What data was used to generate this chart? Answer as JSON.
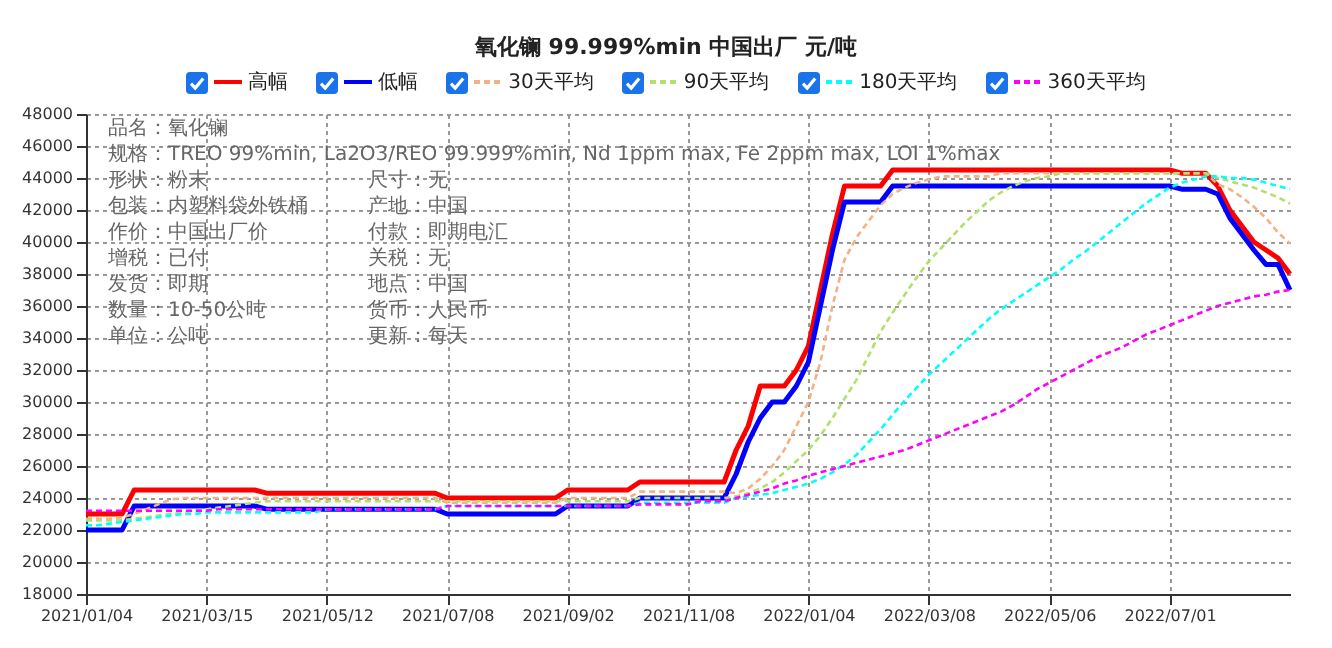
{
  "chart_data": {
    "type": "line",
    "title": "氧化镧 99.999%min 中国出厂 元/吨",
    "categories": [
      "2021/01/04",
      null,
      null,
      null,
      null,
      null,
      null,
      null,
      null,
      null,
      "2021/03/15",
      null,
      null,
      null,
      null,
      null,
      null,
      null,
      null,
      null,
      "2021/05/12",
      null,
      null,
      null,
      null,
      null,
      null,
      null,
      null,
      null,
      "2021/07/08",
      null,
      null,
      null,
      null,
      null,
      null,
      null,
      null,
      null,
      "2021/09/02",
      null,
      null,
      null,
      null,
      null,
      null,
      null,
      null,
      null,
      "2021/11/08",
      null,
      null,
      null,
      null,
      null,
      null,
      null,
      null,
      null,
      "2022/01/04",
      null,
      null,
      null,
      null,
      null,
      null,
      null,
      null,
      null,
      "2022/03/08",
      null,
      null,
      null,
      null,
      null,
      null,
      null,
      null,
      null,
      "2022/05/06",
      null,
      null,
      null,
      null,
      null,
      null,
      null,
      null,
      null,
      "2022/07/01",
      null,
      null,
      null,
      null,
      null,
      null,
      null,
      null,
      null,
      null
    ],
    "series": [
      {
        "name": "高幅",
        "color": "#ff0000",
        "line_style": "solid",
        "values": [
          23000,
          23000,
          23000,
          23000,
          24500,
          24500,
          24500,
          24500,
          24500,
          24500,
          24500,
          24500,
          24500,
          24500,
          24500,
          24300,
          24300,
          24300,
          24300,
          24300,
          24300,
          24300,
          24300,
          24300,
          24300,
          24300,
          24300,
          24300,
          24300,
          24300,
          24000,
          24000,
          24000,
          24000,
          24000,
          24000,
          24000,
          24000,
          24000,
          24000,
          24500,
          24500,
          24500,
          24500,
          24500,
          24500,
          25000,
          25000,
          25000,
          25000,
          25000,
          25000,
          25000,
          25000,
          27000,
          28500,
          31000,
          31000,
          31000,
          32000,
          33500,
          37000,
          40500,
          43500,
          43500,
          43500,
          43500,
          44500,
          44500,
          44500,
          44500,
          44500,
          44500,
          44500,
          44500,
          44500,
          44500,
          44500,
          44500,
          44500,
          44500,
          44500,
          44500,
          44500,
          44500,
          44500,
          44500,
          44500,
          44500,
          44500,
          44500,
          44300,
          44300,
          44300,
          43500,
          42000,
          41000,
          40000,
          39500,
          39000,
          38000
        ]
      },
      {
        "name": "低幅",
        "color": "#0000ff",
        "line_style": "solid",
        "values": [
          22000,
          22000,
          22000,
          22000,
          23500,
          23500,
          23500,
          23500,
          23500,
          23500,
          23500,
          23500,
          23500,
          23500,
          23500,
          23300,
          23300,
          23300,
          23300,
          23300,
          23300,
          23300,
          23300,
          23300,
          23300,
          23300,
          23300,
          23300,
          23300,
          23300,
          23000,
          23000,
          23000,
          23000,
          23000,
          23000,
          23000,
          23000,
          23000,
          23000,
          23500,
          23500,
          23500,
          23500,
          23500,
          23500,
          24000,
          24000,
          24000,
          24000,
          24000,
          24000,
          24000,
          24000,
          25500,
          27500,
          29000,
          30000,
          30000,
          31000,
          32500,
          36000,
          39500,
          42500,
          42500,
          42500,
          42500,
          43500,
          43500,
          43500,
          43500,
          43500,
          43500,
          43500,
          43500,
          43500,
          43500,
          43500,
          43500,
          43500,
          43500,
          43500,
          43500,
          43500,
          43500,
          43500,
          43500,
          43500,
          43500,
          43500,
          43500,
          43300,
          43300,
          43300,
          43000,
          41500,
          40500,
          39500,
          38600,
          38600,
          37000
        ]
      },
      {
        "name": "30天平均",
        "color": "#f4b183",
        "line_style": "dashed",
        "values": [
          22700,
          22700,
          22700,
          22800,
          23000,
          23300,
          23600,
          23900,
          24000,
          24000,
          24000,
          24000,
          24000,
          24000,
          24000,
          24000,
          24000,
          24000,
          24000,
          24000,
          24000,
          24000,
          24000,
          24000,
          24000,
          24000,
          24000,
          24000,
          24000,
          24000,
          23700,
          23700,
          23700,
          23700,
          23700,
          23700,
          23700,
          23700,
          23700,
          23700,
          24000,
          24000,
          24000,
          24000,
          24000,
          24000,
          24400,
          24400,
          24400,
          24400,
          24400,
          24400,
          24400,
          24400,
          24300,
          24600,
          25200,
          26000,
          27000,
          28500,
          30000,
          32500,
          36000,
          38900,
          40300,
          41300,
          42300,
          43000,
          43400,
          43700,
          43900,
          44100,
          44100,
          44100,
          44100,
          44100,
          44300,
          44300,
          44300,
          44300,
          44300,
          44300,
          44300,
          44300,
          44300,
          44300,
          44300,
          44300,
          44300,
          44300,
          44300,
          44300,
          44300,
          44300,
          43600,
          43300,
          42800,
          42200,
          41500,
          40600,
          39900
        ]
      },
      {
        "name": "90天平均",
        "color": "#b3e06b",
        "line_style": "dashed",
        "values": [
          22600,
          22600,
          22600,
          22600,
          22700,
          22800,
          22900,
          23000,
          23100,
          23200,
          23300,
          23400,
          23500,
          23600,
          23700,
          23800,
          23800,
          23800,
          23800,
          23800,
          23800,
          23800,
          23800,
          23800,
          23800,
          23800,
          23800,
          23800,
          23800,
          23800,
          23800,
          23800,
          23800,
          23800,
          23800,
          23800,
          23800,
          23800,
          23800,
          23800,
          23800,
          23800,
          23800,
          23800,
          23800,
          23800,
          24000,
          24000,
          24000,
          24000,
          24000,
          24000,
          24000,
          24000,
          24100,
          24300,
          24600,
          25000,
          25600,
          26300,
          27000,
          27900,
          29000,
          30200,
          31400,
          32900,
          34400,
          35600,
          36700,
          37800,
          38800,
          39600,
          40400,
          41200,
          41900,
          42600,
          43100,
          43500,
          43800,
          44000,
          44100,
          44300,
          44300,
          44300,
          44300,
          44300,
          44300,
          44300,
          44300,
          44300,
          44300,
          44300,
          44300,
          44300,
          44000,
          43800,
          43600,
          43400,
          43100,
          42800,
          42400
        ]
      },
      {
        "name": "180天平均",
        "color": "#00ffff",
        "line_style": "dashed",
        "values": [
          22300,
          22300,
          22400,
          22500,
          22600,
          22700,
          22800,
          22900,
          23000,
          23000,
          23100,
          23100,
          23100,
          23100,
          23100,
          23100,
          23100,
          23100,
          23100,
          23100,
          23300,
          23300,
          23300,
          23300,
          23300,
          23300,
          23300,
          23300,
          23300,
          23300,
          23500,
          23500,
          23500,
          23500,
          23500,
          23500,
          23500,
          23500,
          23500,
          23500,
          23500,
          23500,
          23500,
          23500,
          23500,
          23500,
          23700,
          23700,
          23700,
          23700,
          23700,
          23700,
          23700,
          23700,
          24000,
          24100,
          24200,
          24300,
          24500,
          24700,
          24900,
          25200,
          25600,
          26100,
          26700,
          27500,
          28300,
          29200,
          30100,
          30900,
          31700,
          32400,
          33100,
          33800,
          34500,
          35200,
          35800,
          36300,
          36800,
          37300,
          37800,
          38300,
          38900,
          39400,
          40000,
          40600,
          41200,
          41800,
          42400,
          42900,
          43400,
          43700,
          43900,
          44100,
          44100,
          44000,
          44000,
          43900,
          43700,
          43500,
          43300
        ]
      },
      {
        "name": "360天平均",
        "color": "#ff00ff",
        "line_style": "dashed",
        "values": [
          23200,
          23200,
          23200,
          23200,
          23200,
          23200,
          23200,
          23200,
          23200,
          23200,
          23200,
          23300,
          23300,
          23300,
          23300,
          23300,
          23300,
          23300,
          23300,
          23300,
          23300,
          23300,
          23300,
          23300,
          23300,
          23300,
          23300,
          23300,
          23300,
          23300,
          23500,
          23500,
          23500,
          23500,
          23500,
          23500,
          23500,
          23500,
          23500,
          23500,
          23500,
          23500,
          23500,
          23500,
          23500,
          23500,
          23600,
          23600,
          23600,
          23600,
          23600,
          23800,
          23800,
          23800,
          24000,
          24200,
          24400,
          24600,
          24900,
          25100,
          25400,
          25600,
          25800,
          26000,
          26200,
          26400,
          26600,
          26800,
          27000,
          27300,
          27600,
          27900,
          28200,
          28500,
          28800,
          29100,
          29400,
          29800,
          30300,
          30800,
          31200,
          31600,
          32000,
          32400,
          32800,
          33100,
          33400,
          33800,
          34200,
          34500,
          34800,
          35100,
          35400,
          35700,
          36000,
          36200,
          36400,
          36600,
          36700,
          36900,
          37000
        ]
      }
    ],
    "ylim": [
      18000,
      48000
    ],
    "yticks": [
      18000,
      20000,
      22000,
      24000,
      26000,
      28000,
      30000,
      32000,
      34000,
      36000,
      38000,
      40000,
      42000,
      44000,
      46000,
      48000
    ],
    "grid": true,
    "legend": "top",
    "marker": "none",
    "annotations": [
      "品名：氧化镧",
      "规格：TREO 99%min, La2O3/REO 99.999%min, Nd 1ppm max, Fe 2ppm max, LOI 1%max",
      "形状：粉末",
      "尺寸：无",
      "包装：内塑料袋外铁桶",
      "产地：中国",
      "作价：中国出厂价",
      "付款：即期电汇",
      "增税：已付",
      "关税：无",
      "发货：即期",
      "地点：中国",
      "数量：10-50公吨",
      "货币：人民币",
      "单位：公吨",
      "更新：每天"
    ]
  }
}
